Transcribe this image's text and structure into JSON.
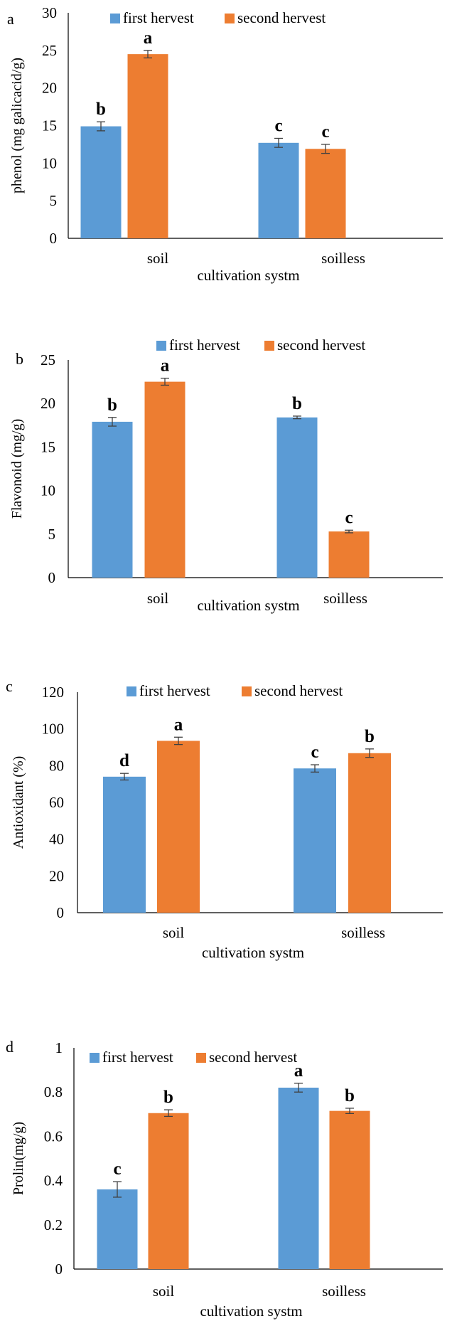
{
  "colors": {
    "series1": "#5b9bd5",
    "series2": "#ed7d31",
    "axis": "#000000",
    "error_bar": "#404040"
  },
  "chart_data": [
    {
      "panel_label": "a",
      "type": "bar",
      "ylabel": "phenol (mg galicacid/g)",
      "xlabel": "cultivation systm",
      "categories": [
        "soil",
        "soilless"
      ],
      "ylim": [
        0,
        30
      ],
      "yticks": [
        0,
        5,
        10,
        15,
        20,
        25,
        30
      ],
      "legend_position": "top",
      "series": [
        {
          "name": "first hervest",
          "values": [
            14.9,
            12.7
          ],
          "errors": [
            0.6,
            0.6
          ],
          "letters": [
            "b",
            "c"
          ]
        },
        {
          "name": "second hervest",
          "values": [
            24.5,
            11.9
          ],
          "errors": [
            0.5,
            0.6
          ],
          "letters": [
            "a",
            "c"
          ]
        }
      ]
    },
    {
      "panel_label": "b",
      "type": "bar",
      "ylabel": "Flavonoid (mg/g)",
      "xlabel": "cultivation systm",
      "categories": [
        "soil",
        "soilless"
      ],
      "ylim": [
        0,
        25
      ],
      "yticks": [
        0,
        5,
        10,
        15,
        20,
        25
      ],
      "legend_position": "top",
      "series": [
        {
          "name": "first hervest",
          "values": [
            17.9,
            18.4
          ],
          "errors": [
            0.5,
            0.15
          ],
          "letters": [
            "b",
            "b"
          ]
        },
        {
          "name": "second hervest",
          "values": [
            22.5,
            5.3
          ],
          "errors": [
            0.4,
            0.15
          ],
          "letters": [
            "a",
            "c"
          ]
        }
      ]
    },
    {
      "panel_label": "c",
      "type": "bar",
      "ylabel": "Antioxidant (%)",
      "xlabel": "cultivation systm",
      "categories": [
        "soil",
        "soilless"
      ],
      "ylim": [
        0,
        120
      ],
      "yticks": [
        0,
        20,
        40,
        60,
        80,
        100,
        120
      ],
      "legend_position": "top",
      "series": [
        {
          "name": "first hervest",
          "values": [
            74,
            78.5
          ],
          "errors": [
            1.8,
            2.0
          ],
          "letters": [
            "d",
            "c"
          ]
        },
        {
          "name": "second hervest",
          "values": [
            93.5,
            86.8
          ],
          "errors": [
            2.0,
            2.3
          ],
          "letters": [
            "a",
            "b"
          ]
        }
      ]
    },
    {
      "panel_label": "d",
      "type": "bar",
      "ylabel": "Prolin(mg/g)",
      "xlabel": "cultivation systm",
      "categories": [
        "soil",
        "soilless"
      ],
      "ylim": [
        0,
        1
      ],
      "yticks": [
        "0",
        "0.2",
        "0.4",
        "0.6",
        "0.8",
        "1"
      ],
      "legend_position": "top",
      "series": [
        {
          "name": "first hervest",
          "values": [
            0.36,
            0.82
          ],
          "errors": [
            0.035,
            0.02
          ],
          "letters": [
            "c",
            "a"
          ]
        },
        {
          "name": "second hervest",
          "values": [
            0.705,
            0.715
          ],
          "errors": [
            0.015,
            0.012
          ],
          "letters": [
            "b",
            "b"
          ]
        }
      ]
    }
  ]
}
